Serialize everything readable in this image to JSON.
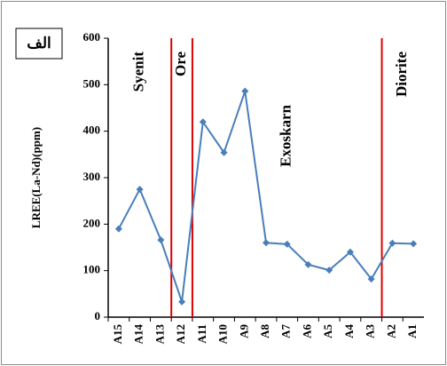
{
  "chart_data": {
    "type": "line",
    "badge": "الف",
    "ylabel": "LREE(La-Nd)(ppm)",
    "categories": [
      "A15",
      "A14",
      "A13",
      "A12",
      "A11",
      "A10",
      "A9",
      "A8",
      "A7",
      "A6",
      "A5",
      "A4",
      "A3",
      "A2",
      "A1"
    ],
    "values": [
      190,
      275,
      166,
      33,
      420,
      354,
      486,
      160,
      157,
      113,
      101,
      140,
      82,
      159,
      158
    ],
    "color": "#4a7ebb",
    "ylim": [
      0,
      600
    ],
    "yticks": [
      0,
      100,
      200,
      300,
      400,
      500,
      600
    ],
    "divider_color": "#e00000",
    "zones": [
      {
        "label": "Syenit",
        "categories": [
          "A15",
          "A14",
          "A13"
        ]
      },
      {
        "label": "Ore",
        "categories": [
          "A12"
        ]
      },
      {
        "label": "Exoskarn",
        "categories": [
          "A11",
          "A10",
          "A9",
          "A8",
          "A7",
          "A6",
          "A5",
          "A4",
          "A3"
        ]
      },
      {
        "label": "Diorite",
        "categories": [
          "A2",
          "A1"
        ]
      }
    ]
  }
}
